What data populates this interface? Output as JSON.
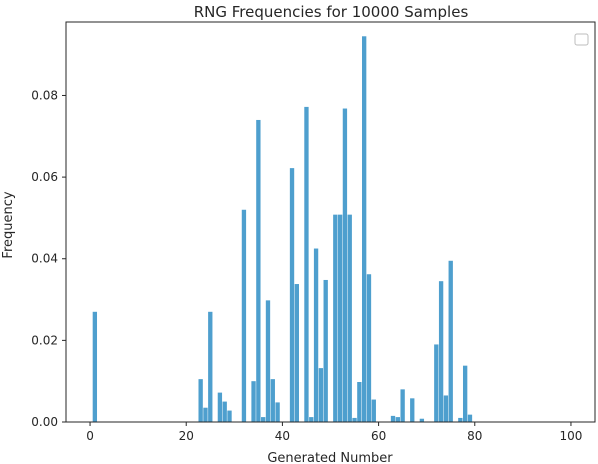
{
  "chart_data": {
    "type": "bar",
    "title": "RNG Frequencies for 10000 Samples",
    "xlabel": "Generated Number",
    "ylabel": "Frequency",
    "xlim": [
      -5,
      105
    ],
    "ylim": [
      0,
      0.098
    ],
    "xticks": [
      0,
      20,
      40,
      60,
      80,
      100
    ],
    "xtick_labels": [
      "0",
      "20",
      "40",
      "60",
      "80",
      "100"
    ],
    "yticks": [
      0.0,
      0.02,
      0.04,
      0.06,
      0.08
    ],
    "ytick_labels": [
      "0.00",
      "0.02",
      "0.04",
      "0.06",
      "0.08"
    ],
    "bar_color": "#4e9fce",
    "grid": false,
    "legend": {
      "placement": "upper right",
      "entries": []
    },
    "series": [
      {
        "x": [
          1,
          23,
          24,
          25,
          27,
          28,
          29,
          32,
          34,
          35,
          36,
          37,
          38,
          39,
          42,
          43,
          45,
          46,
          47,
          48,
          49,
          51,
          52,
          53,
          54,
          55,
          56,
          57,
          58,
          59,
          63,
          64,
          65,
          67,
          69,
          72,
          73,
          74,
          75,
          77,
          78,
          79
        ],
        "values": [
          0.027,
          0.0105,
          0.0035,
          0.027,
          0.0072,
          0.005,
          0.0028,
          0.052,
          0.01,
          0.074,
          0.0012,
          0.0298,
          0.0105,
          0.0048,
          0.0622,
          0.0338,
          0.0772,
          0.0012,
          0.0425,
          0.0132,
          0.0348,
          0.0508,
          0.0508,
          0.0768,
          0.0508,
          0.001,
          0.0098,
          0.0945,
          0.0362,
          0.0055,
          0.0015,
          0.0012,
          0.008,
          0.0058,
          0.0008,
          0.019,
          0.0345,
          0.0065,
          0.0395,
          0.001,
          0.0138,
          0.0018
        ]
      }
    ]
  }
}
